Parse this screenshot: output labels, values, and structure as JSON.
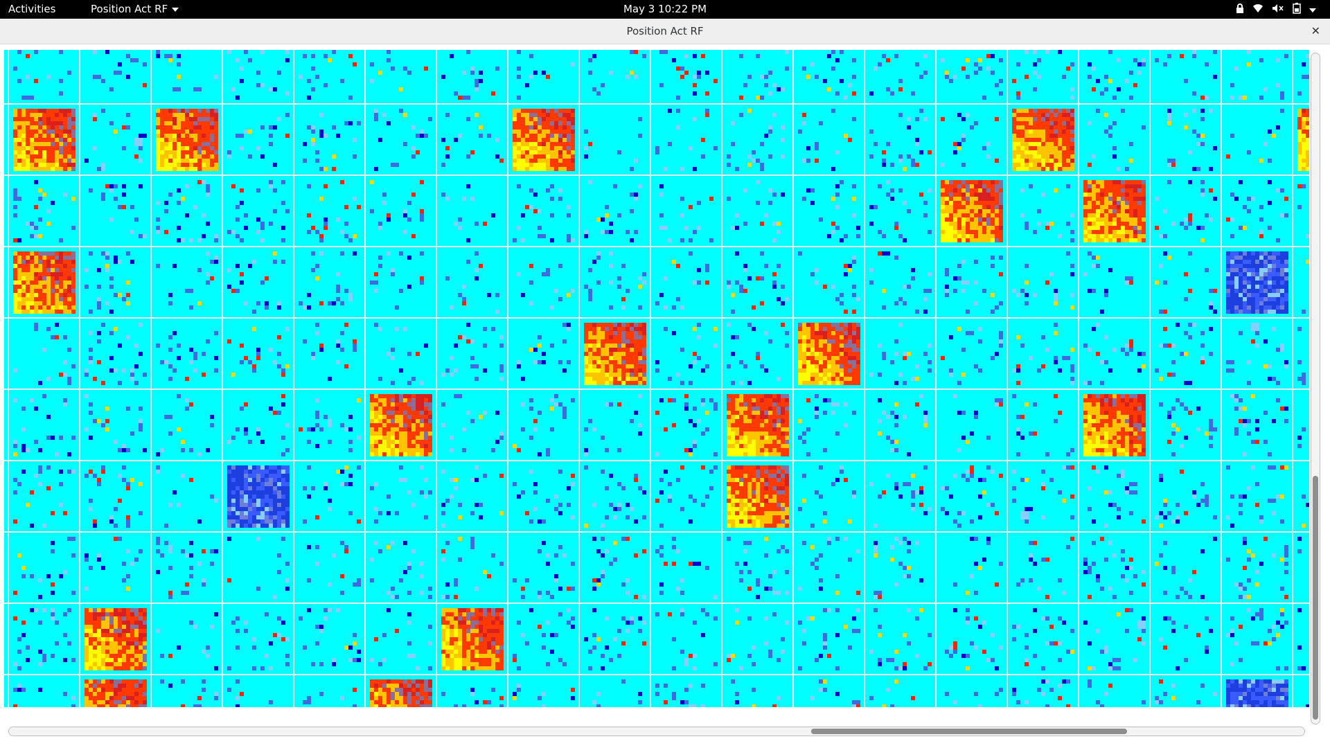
{
  "topbar": {
    "activities": "Activities",
    "app_menu": "Position Act RF",
    "clock": "May 3  10:22 PM",
    "tray_icons": [
      "lock-icon",
      "wifi-icon",
      "volume-muted-icon",
      "battery-icon",
      "power-menu-icon"
    ]
  },
  "window": {
    "title": "Position Act RF",
    "close_icon": "close-icon"
  },
  "heatmap_grid": {
    "columns": 20,
    "visible_rows": 10,
    "colormap": [
      "#00ffff",
      "#87cefa",
      "#4169e1",
      "#0000cd",
      "#ff0000",
      "#ffd700",
      "#ffff00",
      "#808080"
    ],
    "dense_cells": [
      [
        1,
        1
      ],
      [
        1,
        3
      ],
      [
        1,
        8
      ],
      [
        1,
        15
      ],
      [
        1,
        19
      ],
      [
        2,
        14
      ],
      [
        2,
        16
      ],
      [
        3,
        1
      ],
      [
        4,
        9
      ],
      [
        4,
        12
      ],
      [
        5,
        6
      ],
      [
        5,
        11
      ],
      [
        5,
        16
      ],
      [
        6,
        4
      ],
      [
        6,
        11
      ],
      [
        8,
        2
      ],
      [
        8,
        7
      ],
      [
        9,
        2
      ],
      [
        9,
        6
      ],
      [
        9,
        18
      ]
    ],
    "blue_dense_cells": [
      [
        6,
        4
      ],
      [
        9,
        18
      ],
      [
        3,
        18
      ]
    ]
  },
  "scrollbars": {
    "vertical_position": 0.63,
    "horizontal_position": 0.62
  }
}
